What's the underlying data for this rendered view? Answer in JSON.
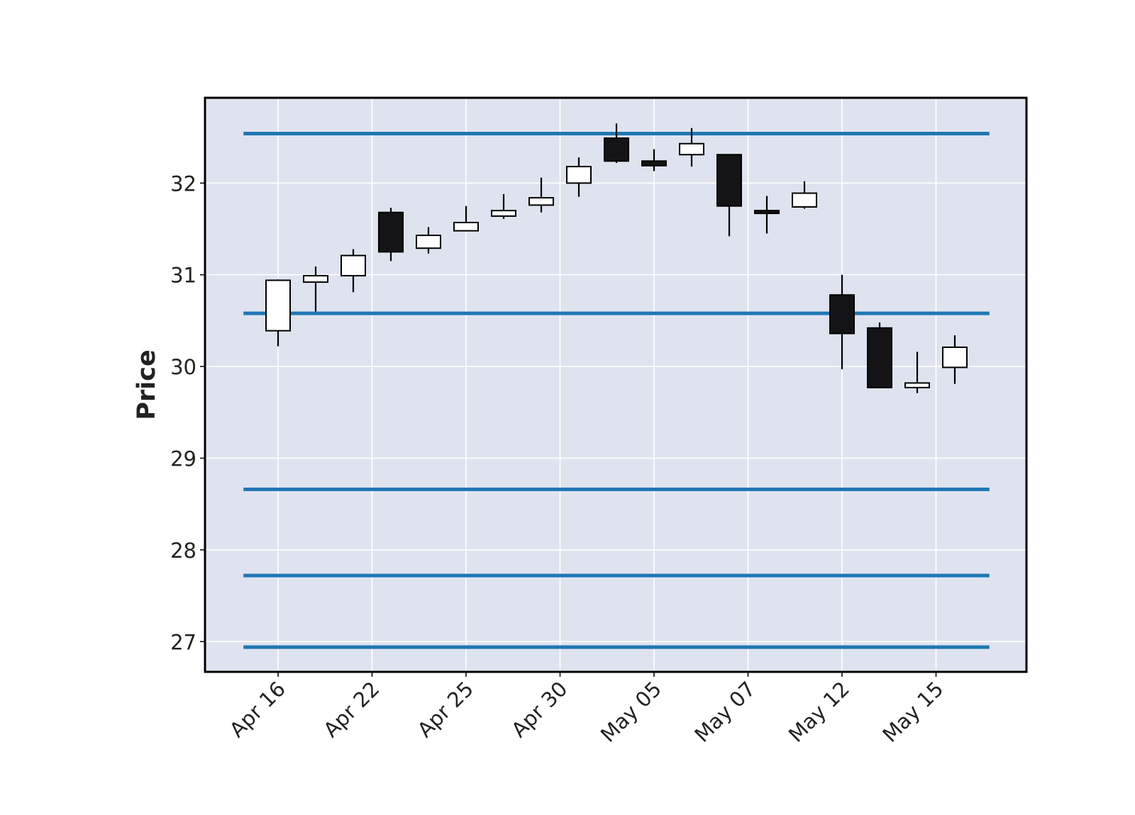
{
  "chart_data": {
    "type": "candlestick",
    "ylabel": "Price",
    "ylim": [
      26.67,
      32.93
    ],
    "grid": true,
    "colors": {
      "background": "#dee3ef",
      "grid": "#ffffff",
      "frame": "#000000",
      "up_body": "#ffffff",
      "down_body": "#141416",
      "wick": "#000000",
      "hline": "#1f77b4"
    },
    "yticks": [
      27,
      28,
      29,
      30,
      31,
      32
    ],
    "xticks": [
      {
        "index": 0,
        "label": "Apr 16"
      },
      {
        "index": 2.5,
        "label": "Apr 22"
      },
      {
        "index": 5,
        "label": "Apr 25"
      },
      {
        "index": 7.5,
        "label": "Apr 30"
      },
      {
        "index": 10,
        "label": "May 05"
      },
      {
        "index": 12.5,
        "label": "May 07"
      },
      {
        "index": 15,
        "label": "May 12"
      },
      {
        "index": 17.5,
        "label": "May 15"
      }
    ],
    "candles": [
      {
        "open": 30.39,
        "high": 30.95,
        "low": 30.22,
        "close": 30.94
      },
      {
        "open": 30.92,
        "high": 31.09,
        "low": 30.6,
        "close": 30.99
      },
      {
        "open": 30.99,
        "high": 31.28,
        "low": 30.81,
        "close": 31.21
      },
      {
        "open": 31.68,
        "high": 31.73,
        "low": 31.15,
        "close": 31.25
      },
      {
        "open": 31.29,
        "high": 31.52,
        "low": 31.23,
        "close": 31.43
      },
      {
        "open": 31.48,
        "high": 31.75,
        "low": 31.48,
        "close": 31.57
      },
      {
        "open": 31.64,
        "high": 31.88,
        "low": 31.61,
        "close": 31.7
      },
      {
        "open": 31.76,
        "high": 32.06,
        "low": 31.68,
        "close": 31.84
      },
      {
        "open": 32.0,
        "high": 32.28,
        "low": 31.85,
        "close": 32.18
      },
      {
        "open": 32.49,
        "high": 32.65,
        "low": 32.22,
        "close": 32.24
      },
      {
        "open": 32.24,
        "high": 32.37,
        "low": 32.13,
        "close": 32.19
      },
      {
        "open": 32.31,
        "high": 32.6,
        "low": 32.18,
        "close": 32.43
      },
      {
        "open": 32.31,
        "high": 32.31,
        "low": 31.42,
        "close": 31.75
      },
      {
        "open": 31.7,
        "high": 31.86,
        "low": 31.45,
        "close": 31.67
      },
      {
        "open": 31.74,
        "high": 32.02,
        "low": 31.72,
        "close": 31.89
      },
      {
        "open": 30.78,
        "high": 31.0,
        "low": 29.97,
        "close": 30.36
      },
      {
        "open": 30.42,
        "high": 30.48,
        "low": 29.77,
        "close": 29.77
      },
      {
        "open": 29.77,
        "high": 30.16,
        "low": 29.71,
        "close": 29.82
      },
      {
        "open": 29.99,
        "high": 30.34,
        "low": 29.81,
        "close": 30.21
      }
    ],
    "hlines": [
      32.54,
      30.58,
      28.66,
      27.72,
      26.94
    ]
  }
}
